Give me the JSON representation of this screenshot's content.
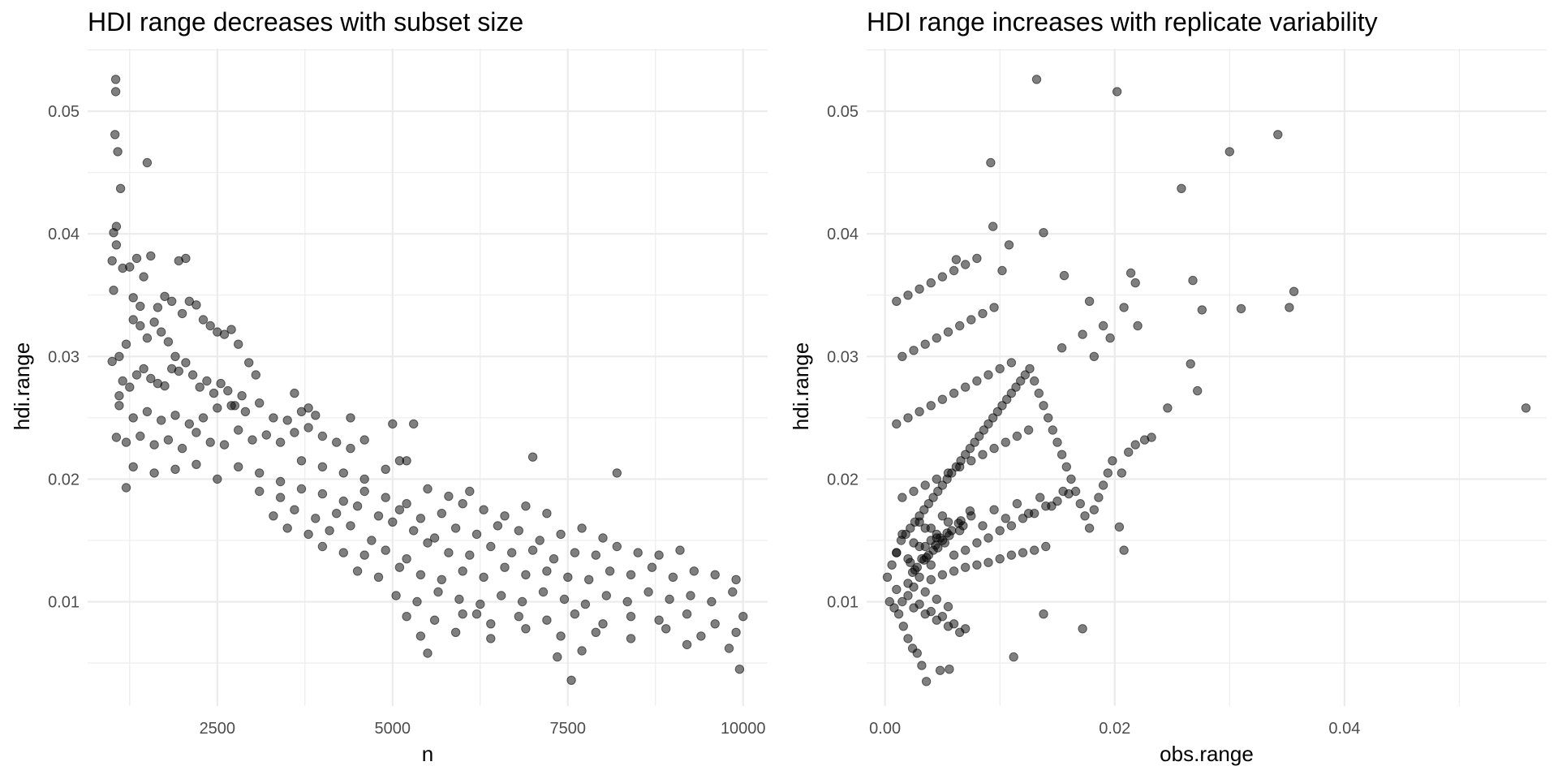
{
  "chart_data": [
    {
      "type": "scatter",
      "title": "HDI range decreases with subset size",
      "xlabel": "n",
      "ylabel": "hdi.range",
      "xlim": [
        650,
        10350
      ],
      "ylim": [
        0.0015,
        0.0551
      ],
      "x_ticks": [
        2500,
        5000,
        7500,
        10000
      ],
      "x_tick_labels": [
        "2500",
        "5000",
        "7500",
        "10000"
      ],
      "y_ticks": [
        0.01,
        0.02,
        0.03,
        0.04,
        0.05
      ],
      "y_tick_labels": [
        "0.01",
        "0.02",
        "0.03",
        "0.04",
        "0.05"
      ],
      "grid": true,
      "point_color": "#000000",
      "point_alpha": 0.5,
      "series": [
        {
          "x": [
            1050,
            1050,
            1040,
            1080,
            1020,
            1060,
            1000,
            1020,
            1500,
            1120,
            1060,
            1000,
            1060,
            1100,
            1200,
            1300,
            1400,
            1150,
            1250,
            1350,
            1450,
            1550,
            1650,
            1750,
            1850,
            1950,
            2050,
            1100,
            1200,
            1300,
            1400,
            1500,
            1600,
            1700,
            1800,
            1900,
            2000,
            2100,
            2200,
            2300,
            2400,
            2500,
            2600,
            2700,
            2800,
            1150,
            1250,
            1350,
            1450,
            1550,
            1650,
            1750,
            1850,
            1950,
            2050,
            2150,
            2250,
            2350,
            2450,
            2550,
            2650,
            2750,
            2850,
            2950,
            3050,
            1100,
            1300,
            1500,
            1700,
            1900,
            2100,
            2300,
            2500,
            2700,
            2900,
            3100,
            3300,
            3500,
            3700,
            3900,
            1200,
            1400,
            1600,
            1800,
            2000,
            2200,
            2400,
            2600,
            2800,
            3000,
            3200,
            3400,
            3600,
            3800,
            4000,
            4200,
            4400,
            4600,
            1300,
            1600,
            1900,
            2200,
            2500,
            2800,
            3100,
            3400,
            3700,
            4000,
            4300,
            4600,
            4900,
            5200,
            3600,
            3800,
            4400,
            5000,
            3100,
            3400,
            3700,
            4000,
            4300,
            4600,
            4900,
            5200,
            5500,
            5800,
            6100,
            3300,
            3600,
            3900,
            4200,
            4500,
            4800,
            5100,
            5400,
            5700,
            6000,
            6300,
            6600,
            6900,
            7200,
            3500,
            3800,
            4100,
            4400,
            4700,
            5000,
            5300,
            5600,
            5900,
            6200,
            6500,
            6800,
            7100,
            7400,
            7700,
            8000,
            4000,
            4300,
            4600,
            4900,
            5200,
            5500,
            5800,
            6100,
            6400,
            6700,
            7000,
            7300,
            7600,
            7900,
            8200,
            8500,
            8800,
            9100,
            4500,
            4800,
            5100,
            5400,
            5700,
            6000,
            6300,
            6600,
            6900,
            7200,
            7500,
            7800,
            8100,
            8400,
            8700,
            9000,
            9300,
            9600,
            9900,
            5050,
            5350,
            5650,
            5950,
            6250,
            6550,
            6850,
            7150,
            7450,
            7750,
            8050,
            8350,
            8650,
            8950,
            9250,
            9550,
            9850,
            5200,
            5600,
            6000,
            6400,
            6800,
            7200,
            7600,
            8000,
            8400,
            8800,
            9200,
            9600,
            10000,
            5400,
            5900,
            6400,
            6900,
            7400,
            7900,
            8400,
            8900,
            9400,
            9900,
            5100,
            5300,
            5500,
            6200,
            7000,
            7350,
            7550,
            7700,
            8200,
            9200,
            9800,
            9950
          ],
          "y": [
            0.0526,
            0.0516,
            0.0481,
            0.0467,
            0.0401,
            0.0391,
            0.0378,
            0.0354,
            0.0458,
            0.0437,
            0.0406,
            0.0296,
            0.0234,
            0.0268,
            0.0193,
            0.0348,
            0.0341,
            0.0372,
            0.0373,
            0.038,
            0.0365,
            0.0382,
            0.034,
            0.0349,
            0.0345,
            0.0378,
            0.038,
            0.03,
            0.031,
            0.033,
            0.0325,
            0.0315,
            0.0328,
            0.032,
            0.0312,
            0.03,
            0.0335,
            0.0345,
            0.0342,
            0.033,
            0.0325,
            0.032,
            0.0318,
            0.0322,
            0.031,
            0.028,
            0.0275,
            0.0285,
            0.029,
            0.0282,
            0.0278,
            0.0276,
            0.029,
            0.0288,
            0.0295,
            0.0285,
            0.0275,
            0.028,
            0.027,
            0.0278,
            0.0272,
            0.026,
            0.0268,
            0.0295,
            0.0285,
            0.026,
            0.025,
            0.0255,
            0.0248,
            0.0252,
            0.0245,
            0.025,
            0.0258,
            0.026,
            0.0255,
            0.0262,
            0.025,
            0.0248,
            0.0255,
            0.0252,
            0.023,
            0.0235,
            0.0228,
            0.0232,
            0.0225,
            0.0238,
            0.023,
            0.0228,
            0.024,
            0.0232,
            0.0236,
            0.023,
            0.0238,
            0.0242,
            0.0235,
            0.023,
            0.0225,
            0.0232,
            0.021,
            0.0205,
            0.0208,
            0.0212,
            0.02,
            0.021,
            0.0205,
            0.0198,
            0.0215,
            0.021,
            0.0205,
            0.02,
            0.0208,
            0.0215,
            0.027,
            0.0258,
            0.025,
            0.0245,
            0.019,
            0.0185,
            0.0192,
            0.0188,
            0.0182,
            0.019,
            0.0185,
            0.018,
            0.0192,
            0.0186,
            0.019,
            0.017,
            0.0175,
            0.0168,
            0.0172,
            0.0178,
            0.017,
            0.0175,
            0.0168,
            0.0172,
            0.018,
            0.0175,
            0.017,
            0.0178,
            0.0172,
            0.016,
            0.0155,
            0.0158,
            0.0162,
            0.015,
            0.0165,
            0.0158,
            0.0152,
            0.016,
            0.0155,
            0.0162,
            0.0158,
            0.015,
            0.0155,
            0.016,
            0.0152,
            0.0145,
            0.014,
            0.0138,
            0.0142,
            0.0135,
            0.0148,
            0.014,
            0.0138,
            0.0145,
            0.014,
            0.0142,
            0.0135,
            0.014,
            0.0138,
            0.0145,
            0.014,
            0.0138,
            0.0142,
            0.0125,
            0.012,
            0.0128,
            0.0122,
            0.0118,
            0.0125,
            0.012,
            0.0128,
            0.0122,
            0.0125,
            0.012,
            0.0118,
            0.0125,
            0.0122,
            0.0128,
            0.012,
            0.0125,
            0.0122,
            0.0118,
            0.0105,
            0.01,
            0.0108,
            0.0102,
            0.0098,
            0.0105,
            0.01,
            0.0108,
            0.0102,
            0.0098,
            0.0105,
            0.01,
            0.0108,
            0.0102,
            0.0105,
            0.01,
            0.0108,
            0.0088,
            0.0085,
            0.009,
            0.0082,
            0.0088,
            0.0085,
            0.009,
            0.0082,
            0.0088,
            0.0085,
            0.009,
            0.0082,
            0.0088,
            0.0072,
            0.0075,
            0.007,
            0.0078,
            0.0072,
            0.0075,
            0.007,
            0.0078,
            0.0072,
            0.0075,
            0.0215,
            0.0245,
            0.0058,
            0.009,
            0.0218,
            0.0055,
            0.0036,
            0.006,
            0.0205,
            0.0065,
            0.0062,
            0.0045
          ]
        }
      ]
    },
    {
      "type": "scatter",
      "title": "HDI range increases with replicate variability",
      "xlabel": "obs.range",
      "ylabel": "hdi.range",
      "xlim": [
        -0.0016,
        0.0576
      ],
      "ylim": [
        0.0015,
        0.0551
      ],
      "x_ticks": [
        0.0,
        0.02,
        0.04
      ],
      "x_tick_labels": [
        "0.00",
        "0.02",
        "0.04"
      ],
      "y_ticks": [
        0.01,
        0.02,
        0.03,
        0.04,
        0.05
      ],
      "y_tick_labels": [
        "0.01",
        "0.02",
        "0.03",
        "0.04",
        "0.05"
      ],
      "grid": true,
      "point_color": "#000000",
      "point_alpha": 0.5,
      "series": [
        {
          "x": [
            0.0132,
            0.0202,
            0.0342,
            0.03,
            0.0258,
            0.0092,
            0.0062,
            0.0138,
            0.0094,
            0.0108,
            0.0178,
            0.019,
            0.0156,
            0.0214,
            0.0218,
            0.0154,
            0.0172,
            0.022,
            0.0208,
            0.0196,
            0.0182,
            0.0102,
            0.0268,
            0.0266,
            0.0272,
            0.0232,
            0.0226,
            0.0218,
            0.0212,
            0.0206,
            0.0276,
            0.0246,
            0.031,
            0.0352,
            0.0356,
            0.0558,
            0.0204,
            0.0208,
            0.0172,
            0.0112,
            0.0138,
            0.0056,
            0.0048,
            0.0036,
            0.0032,
            0.0028,
            0.0024,
            0.002,
            0.0016,
            0.0012,
            0.0008,
            0.0004,
            0.0002,
            0.0006,
            0.001,
            0.0014,
            0.0018,
            0.0022,
            0.0026,
            0.003,
            0.0034,
            0.0038,
            0.0042,
            0.0046,
            0.005,
            0.0054,
            0.0058,
            0.0062,
            0.0066,
            0.007,
            0.0074,
            0.0078,
            0.0082,
            0.0086,
            0.009,
            0.0094,
            0.0098,
            0.0102,
            0.0106,
            0.011,
            0.0114,
            0.0118,
            0.0122,
            0.0126,
            0.013,
            0.0134,
            0.0138,
            0.0142,
            0.0146,
            0.015,
            0.0154,
            0.0158,
            0.0162,
            0.0166,
            0.017,
            0.0174,
            0.0178,
            0.0182,
            0.0186,
            0.019,
            0.0194,
            0.0198,
            0.001,
            0.002,
            0.003,
            0.004,
            0.005,
            0.006,
            0.007,
            0.008,
            0.009,
            0.01,
            0.011,
            0.012,
            0.013,
            0.014,
            0.015,
            0.016,
            0.0015,
            0.0025,
            0.0035,
            0.0045,
            0.0055,
            0.0065,
            0.0075,
            0.0085,
            0.0095,
            0.0105,
            0.0115,
            0.0125,
            0.0135,
            0.0145,
            0.0155,
            0.001,
            0.002,
            0.003,
            0.004,
            0.005,
            0.006,
            0.007,
            0.008,
            0.009,
            0.01,
            0.011,
            0.012,
            0.013,
            0.014,
            0.0015,
            0.0025,
            0.0035,
            0.0045,
            0.0055,
            0.0065,
            0.0075,
            0.0085,
            0.0095,
            0.0105,
            0.0115,
            0.0125,
            0.001,
            0.002,
            0.003,
            0.004,
            0.005,
            0.006,
            0.007,
            0.008,
            0.009,
            0.01,
            0.011,
            0.0015,
            0.0025,
            0.0035,
            0.0045,
            0.0055,
            0.0065,
            0.0075,
            0.0085,
            0.0095,
            0.001,
            0.002,
            0.003,
            0.004,
            0.005,
            0.006,
            0.007,
            0.008,
            0.0015,
            0.0025,
            0.0035,
            0.0045,
            0.0055,
            0.0065,
            0.002,
            0.003,
            0.004,
            0.005,
            0.006,
            0.007,
            0.0025,
            0.0035,
            0.0045,
            0.0055,
            0.003,
            0.004,
            0.005,
            0.0035,
            0.0045,
            0.004,
            0.0032,
            0.0042,
            0.0052,
            0.0038,
            0.0048,
            0.0028,
            0.0058,
            0.0022,
            0.0068,
            0.0044,
            0.0036,
            0.0046,
            0.0056,
            0.0026,
            0.0066,
            0.0034,
            0.0054,
            0.0064,
            0.0024,
            0.0074
          ],
          "y": [
            0.0526,
            0.0516,
            0.0481,
            0.0467,
            0.0437,
            0.0458,
            0.0379,
            0.0401,
            0.0406,
            0.0391,
            0.0345,
            0.0325,
            0.0366,
            0.0368,
            0.036,
            0.0307,
            0.0318,
            0.0325,
            0.034,
            0.0315,
            0.03,
            0.037,
            0.0362,
            0.0294,
            0.0272,
            0.0234,
            0.0232,
            0.0228,
            0.0222,
            0.0205,
            0.0338,
            0.0258,
            0.0339,
            0.034,
            0.0353,
            0.0258,
            0.0161,
            0.0142,
            0.0078,
            0.0055,
            0.009,
            0.0045,
            0.0044,
            0.0035,
            0.0048,
            0.0058,
            0.0062,
            0.007,
            0.008,
            0.009,
            0.0095,
            0.01,
            0.012,
            0.013,
            0.014,
            0.015,
            0.0155,
            0.016,
            0.0165,
            0.017,
            0.0175,
            0.018,
            0.0185,
            0.019,
            0.0195,
            0.02,
            0.0205,
            0.021,
            0.0215,
            0.022,
            0.0225,
            0.023,
            0.0235,
            0.024,
            0.0245,
            0.025,
            0.0255,
            0.026,
            0.0265,
            0.027,
            0.0275,
            0.028,
            0.0285,
            0.029,
            0.028,
            0.027,
            0.026,
            0.025,
            0.024,
            0.023,
            0.022,
            0.021,
            0.02,
            0.019,
            0.018,
            0.017,
            0.016,
            0.0175,
            0.0185,
            0.0195,
            0.0205,
            0.0215,
            0.014,
            0.0135,
            0.0145,
            0.013,
            0.015,
            0.0138,
            0.0142,
            0.0148,
            0.0152,
            0.0158,
            0.0162,
            0.0168,
            0.0172,
            0.0178,
            0.0182,
            0.0188,
            0.0155,
            0.0148,
            0.016,
            0.0152,
            0.0165,
            0.0158,
            0.017,
            0.0162,
            0.0175,
            0.0168,
            0.018,
            0.0172,
            0.0185,
            0.0178,
            0.019,
            0.011,
            0.0115,
            0.012,
            0.0118,
            0.0122,
            0.0125,
            0.0128,
            0.013,
            0.0132,
            0.0135,
            0.0138,
            0.014,
            0.0142,
            0.0145,
            0.0185,
            0.019,
            0.0195,
            0.02,
            0.0205,
            0.021,
            0.0215,
            0.022,
            0.0225,
            0.023,
            0.0235,
            0.024,
            0.0245,
            0.025,
            0.0255,
            0.026,
            0.0265,
            0.027,
            0.0275,
            0.028,
            0.0285,
            0.029,
            0.0295,
            0.03,
            0.0305,
            0.031,
            0.0315,
            0.032,
            0.0325,
            0.033,
            0.0335,
            0.034,
            0.0345,
            0.035,
            0.0355,
            0.036,
            0.0365,
            0.037,
            0.0375,
            0.038,
            0.01,
            0.0095,
            0.009,
            0.0085,
            0.008,
            0.0075,
            0.0105,
            0.0098,
            0.0092,
            0.0088,
            0.0082,
            0.0078,
            0.0112,
            0.0108,
            0.0102,
            0.0096,
            0.0165,
            0.016,
            0.017,
            0.0145,
            0.0155,
            0.015,
            0.0135,
            0.0142,
            0.0148,
            0.0138,
            0.0152,
            0.0128,
            0.0158,
            0.0132,
            0.0162,
            0.0146,
            0.0136,
            0.0144,
            0.0154,
            0.0126,
            0.0166,
            0.0134,
            0.0156,
            0.0164,
            0.0124,
            0.0174
          ]
        }
      ]
    }
  ]
}
